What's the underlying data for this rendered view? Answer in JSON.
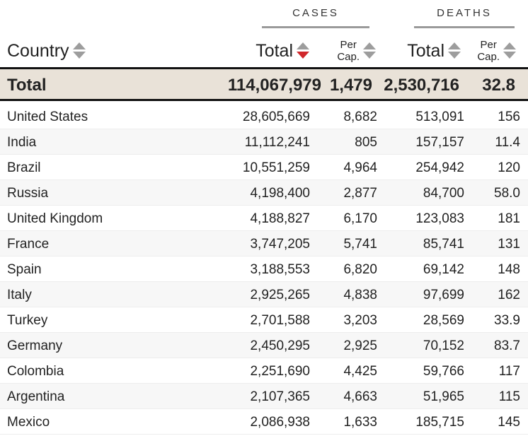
{
  "groups": {
    "cases": "CASES",
    "deaths": "DEATHS"
  },
  "columns": {
    "country": "Country",
    "cases_total": "Total",
    "cases_percap_line1": "Per",
    "cases_percap_line2": "Cap.",
    "deaths_total": "Total",
    "deaths_percap_line1": "Per",
    "deaths_percap_line2": "Cap."
  },
  "sort": {
    "active_column": "cases_total",
    "direction": "descending",
    "active_color": "#d0282b",
    "inactive_color": "#9d9d9d"
  },
  "totals": {
    "label": "Total",
    "cases_total": "114,067,979",
    "cases_percap": "1,479",
    "deaths_total": "2,530,716",
    "deaths_percap": "32.8"
  },
  "rows": [
    {
      "country": "United States",
      "cases_total": "28,605,669",
      "cases_percap": "8,682",
      "deaths_total": "513,091",
      "deaths_percap": "156"
    },
    {
      "country": "India",
      "cases_total": "11,112,241",
      "cases_percap": "805",
      "deaths_total": "157,157",
      "deaths_percap": "11.4"
    },
    {
      "country": "Brazil",
      "cases_total": "10,551,259",
      "cases_percap": "4,964",
      "deaths_total": "254,942",
      "deaths_percap": "120"
    },
    {
      "country": "Russia",
      "cases_total": "4,198,400",
      "cases_percap": "2,877",
      "deaths_total": "84,700",
      "deaths_percap": "58.0"
    },
    {
      "country": "United Kingdom",
      "cases_total": "4,188,827",
      "cases_percap": "6,170",
      "deaths_total": "123,083",
      "deaths_percap": "181"
    },
    {
      "country": "France",
      "cases_total": "3,747,205",
      "cases_percap": "5,741",
      "deaths_total": "85,741",
      "deaths_percap": "131"
    },
    {
      "country": "Spain",
      "cases_total": "3,188,553",
      "cases_percap": "6,820",
      "deaths_total": "69,142",
      "deaths_percap": "148"
    },
    {
      "country": "Italy",
      "cases_total": "2,925,265",
      "cases_percap": "4,838",
      "deaths_total": "97,699",
      "deaths_percap": "162"
    },
    {
      "country": "Turkey",
      "cases_total": "2,701,588",
      "cases_percap": "3,203",
      "deaths_total": "28,569",
      "deaths_percap": "33.9"
    },
    {
      "country": "Germany",
      "cases_total": "2,450,295",
      "cases_percap": "2,925",
      "deaths_total": "70,152",
      "deaths_percap": "83.7"
    },
    {
      "country": "Colombia",
      "cases_total": "2,251,690",
      "cases_percap": "4,425",
      "deaths_total": "59,766",
      "deaths_percap": "117"
    },
    {
      "country": "Argentina",
      "cases_total": "2,107,365",
      "cases_percap": "4,663",
      "deaths_total": "51,965",
      "deaths_percap": "115"
    },
    {
      "country": "Mexico",
      "cases_total": "2,086,938",
      "cases_percap": "1,633",
      "deaths_total": "185,715",
      "deaths_percap": "145"
    }
  ]
}
